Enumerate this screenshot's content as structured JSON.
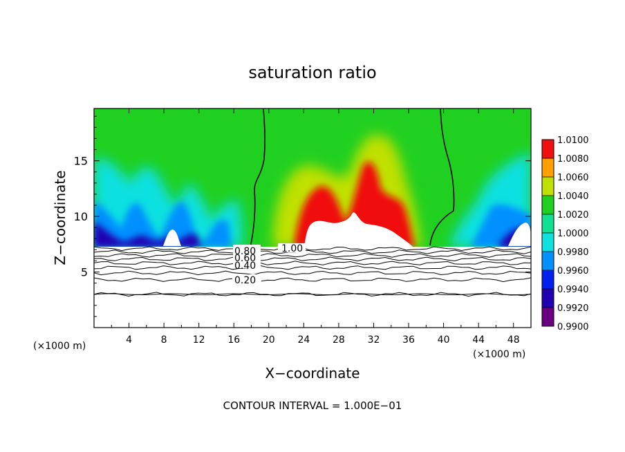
{
  "chart_data": {
    "type": "heatmap",
    "title": "saturation ratio",
    "xlabel": "X−coordinate",
    "ylabel": "Z−coordinate",
    "x_unit": "(×1000 m)",
    "z_unit": "(×1000 m)",
    "footer": "CONTOUR INTERVAL = 1.000E−01",
    "xlim": [
      0,
      50
    ],
    "ylim": [
      0,
      19.7
    ],
    "x_ticks": [
      "4",
      "8",
      "12",
      "16",
      "20",
      "24",
      "28",
      "32",
      "36",
      "40",
      "44",
      "48"
    ],
    "y_ticks": [
      "5",
      "10",
      "15"
    ],
    "colorbar": {
      "levels": [
        "0.9900",
        "0.9920",
        "0.9940",
        "0.9960",
        "0.9980",
        "1.0000",
        "1.0020",
        "1.0040",
        "1.0060",
        "1.0080",
        "1.0100"
      ],
      "colors": [
        "#6a0080",
        "#2000b0",
        "#0020f0",
        "#0090ff",
        "#10e0e0",
        "#10e090",
        "#20d020",
        "#c0e000",
        "#ffa000",
        "#f01010",
        "#ff9090"
      ]
    },
    "contour_labels": [
      "0.80",
      "0.60",
      "0.40",
      "0.20",
      "1.00"
    ],
    "subsaturated_contour_levels": [
      0.2,
      0.3,
      0.4,
      0.5,
      0.6,
      0.7,
      0.8,
      0.9,
      1.0
    ],
    "cloud_base_z": 7.1,
    "saturation_boundary_left_x": [
      18.4,
      17.8,
      17.6,
      17.3
    ],
    "saturation_boundary_right_x": [
      39.5,
      40.1,
      41.1,
      38.8
    ]
  }
}
